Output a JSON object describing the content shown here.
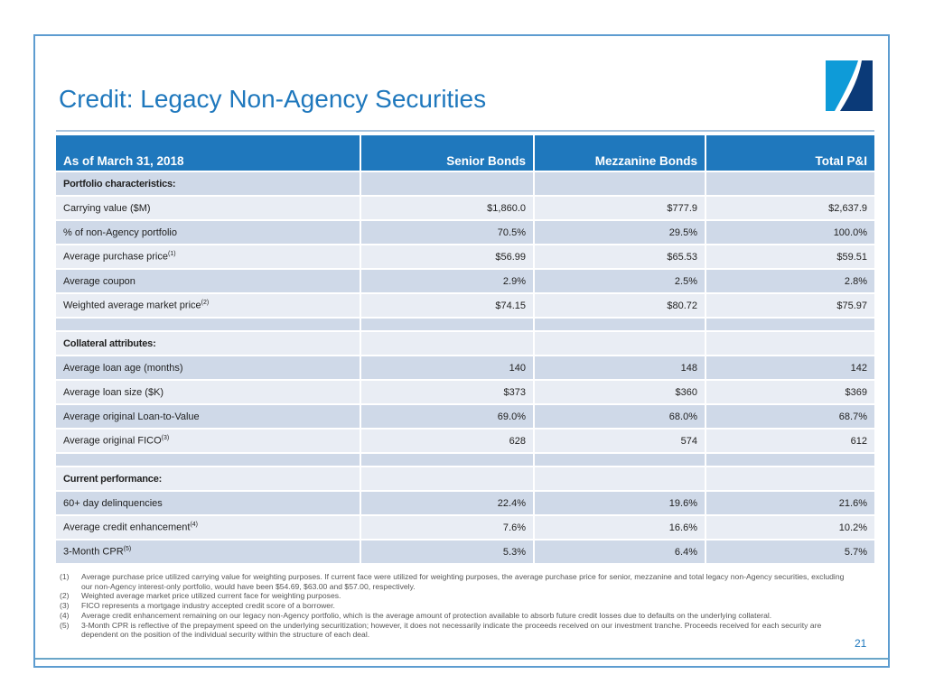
{
  "title": "Credit: Legacy Non-Agency Securities",
  "colors": {
    "accent": "#1f78bd",
    "row_dark": "#cfd9e8",
    "row_light": "#e9edf4"
  },
  "table": {
    "headers": [
      "As of March 31, 2018",
      "Senior Bonds",
      "Mezzanine Bonds",
      "Total P&I"
    ],
    "rows": [
      {
        "label": "Portfolio characteristics:",
        "section": true
      },
      {
        "label": "Carrying value ($M)",
        "values": [
          "$1,860.0",
          "$777.9",
          "$2,637.9"
        ]
      },
      {
        "label": "% of non-Agency portfolio",
        "values": [
          "70.5%",
          "29.5%",
          "100.0%"
        ]
      },
      {
        "label": "Average purchase price",
        "sup": "(1)",
        "values": [
          "$56.99",
          "$65.53",
          "$59.51"
        ]
      },
      {
        "label": "Average coupon",
        "values": [
          "2.9%",
          "2.5%",
          "2.8%"
        ]
      },
      {
        "label": "Weighted average market price",
        "sup": "(2)",
        "values": [
          "$74.15",
          "$80.72",
          "$75.97"
        ]
      },
      {
        "blank": true
      },
      {
        "label": "Collateral attributes:",
        "section": true
      },
      {
        "label": "Average loan age (months)",
        "values": [
          "140",
          "148",
          "142"
        ]
      },
      {
        "label": "Average loan size ($K)",
        "values": [
          "$373",
          "$360",
          "$369"
        ]
      },
      {
        "label": "Average original Loan-to-Value",
        "values": [
          "69.0%",
          "68.0%",
          "68.7%"
        ]
      },
      {
        "label": "Average original FICO",
        "sup": "(3)",
        "values": [
          "628",
          "574",
          "612"
        ]
      },
      {
        "blank": true
      },
      {
        "label": "Current performance:",
        "section": true
      },
      {
        "label": "60+ day delinquencies",
        "values": [
          "22.4%",
          "19.6%",
          "21.6%"
        ]
      },
      {
        "label": "Average credit enhancement",
        "sup": "(4)",
        "values": [
          "7.6%",
          "16.6%",
          "10.2%"
        ]
      },
      {
        "label": "3-Month CPR",
        "sup": "(5)",
        "values": [
          "5.3%",
          "6.4%",
          "5.7%"
        ]
      }
    ]
  },
  "footnotes": [
    {
      "n": "(1)",
      "text": "Average purchase price utilized carrying value for weighting purposes. If current face were utilized for weighting purposes, the average purchase price for senior, mezzanine and total legacy non-Agency securities, excluding our non-Agency interest-only portfolio, would have been $54.69, $63.00 and $57.00, respectively."
    },
    {
      "n": "(2)",
      "text": "Weighted average market price utilized current face for weighting purposes."
    },
    {
      "n": "(3)",
      "text": "FICO represents a mortgage industry accepted credit score of a borrower."
    },
    {
      "n": "(4)",
      "text": "Average credit enhancement remaining on our legacy non-Agency portfolio, which is the average amount of protection available to absorb future credit losses due to defaults on the underlying collateral."
    },
    {
      "n": "(5)",
      "text": "3-Month CPR is reflective of the prepayment speed on the underlying securitization; however, it does not necessarily indicate the proceeds received on our investment tranche. Proceeds received for each security are dependent on the position of the individual security within the structure of each deal."
    }
  ],
  "page_number": "21"
}
